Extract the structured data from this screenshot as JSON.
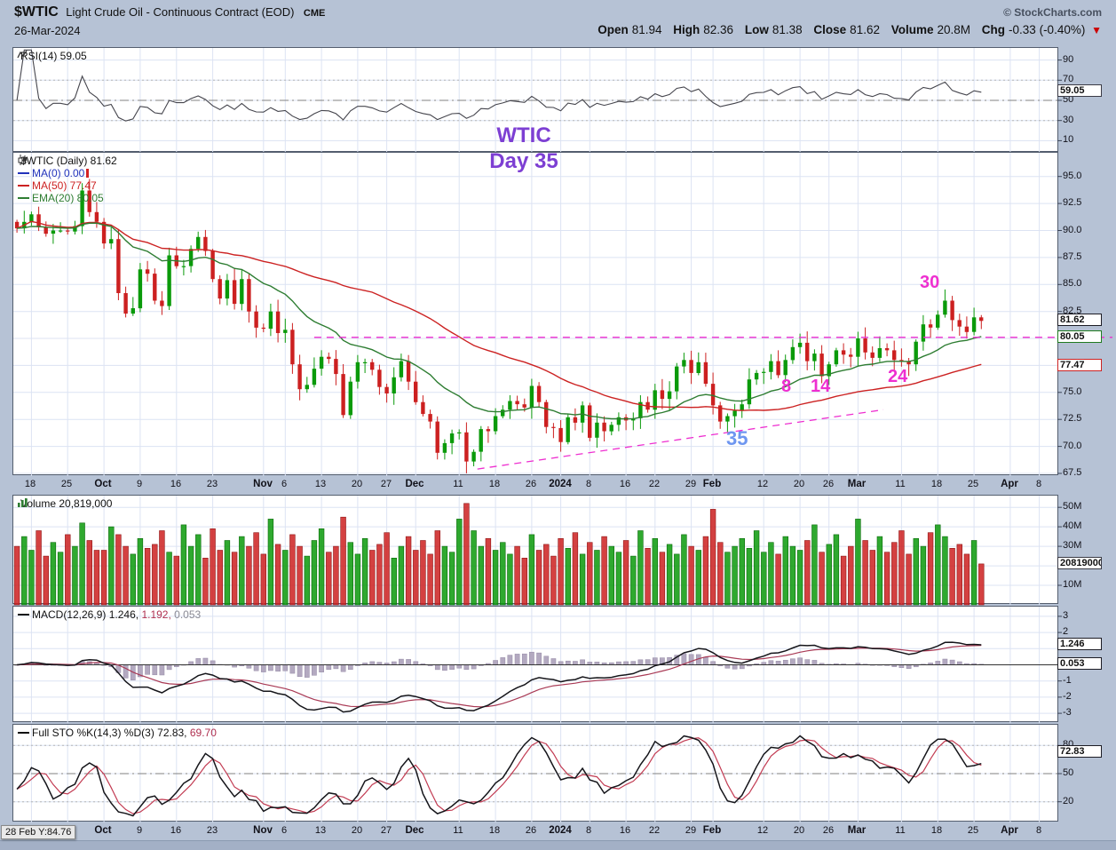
{
  "header": {
    "symbol": "$WTIC",
    "description": "Light Crude Oil - Continuous Contract (EOD)",
    "exchange": "CME",
    "copyright": "© StockCharts.com",
    "date": "26-Mar-2024",
    "dropdown": "▼",
    "quote": [
      {
        "label": "Open",
        "value": "81.94"
      },
      {
        "label": "High",
        "value": "82.36"
      },
      {
        "label": "Low",
        "value": "81.38"
      },
      {
        "label": "Close",
        "value": "81.62"
      },
      {
        "label": "Volume",
        "value": "20.8M"
      },
      {
        "label": "Chg",
        "value": "-0.33 (-0.40%)"
      }
    ]
  },
  "panels": {
    "rsi": {
      "title": "RSI(14) 59.05"
    },
    "price": {
      "title": "$WTIC (Daily) 81.62",
      "ma0": "MA(0) 0.00",
      "ma50": "MA(50) 77.47",
      "ema20": "EMA(20) 80.05"
    },
    "volume": {
      "title": "Volume 20,819,000"
    },
    "macd": {
      "label": "MACD(12,26,9)",
      "v1": "1.246,",
      "v2": "1.192,",
      "v3": "0.053"
    },
    "sto": {
      "label": "Full STO %K(14,3) %D(3)",
      "v1": "72.83,",
      "v2": "69.70"
    }
  },
  "footer": {
    "readout": "28 Feb Y:84.76"
  },
  "chart_data": {
    "type": "candlestick",
    "title": "$WTIC (Daily)",
    "slots": 144,
    "colors": {
      "up": "#0a9a0a",
      "down": "#cc2020",
      "ma50": "#cc2222",
      "ema20": "#2e7d32",
      "magenta": "#ee2fd0",
      "purple": "#7d3fd3",
      "blue": "#6e96f0"
    },
    "x_ticks": [
      {
        "label": "18",
        "slot": 2
      },
      {
        "label": "25",
        "slot": 7
      },
      {
        "label": "Oct",
        "slot": 12,
        "bold": true
      },
      {
        "label": "9",
        "slot": 17
      },
      {
        "label": "16",
        "slot": 22
      },
      {
        "label": "23",
        "slot": 27
      },
      {
        "label": "Nov",
        "slot": 34,
        "bold": true
      },
      {
        "label": "6",
        "slot": 37
      },
      {
        "label": "13",
        "slot": 42
      },
      {
        "label": "20",
        "slot": 47
      },
      {
        "label": "27",
        "slot": 51
      },
      {
        "label": "Dec",
        "slot": 55,
        "bold": true
      },
      {
        "label": "11",
        "slot": 61
      },
      {
        "label": "18",
        "slot": 66
      },
      {
        "label": "26",
        "slot": 71
      },
      {
        "label": "2024",
        "slot": 75,
        "bold": true
      },
      {
        "label": "8",
        "slot": 79
      },
      {
        "label": "16",
        "slot": 84
      },
      {
        "label": "22",
        "slot": 88
      },
      {
        "label": "29",
        "slot": 93
      },
      {
        "label": "Feb",
        "slot": 96,
        "bold": true
      },
      {
        "label": "12",
        "slot": 103
      },
      {
        "label": "20",
        "slot": 108
      },
      {
        "label": "26",
        "slot": 112
      },
      {
        "label": "Mar",
        "slot": 116,
        "bold": true
      },
      {
        "label": "11",
        "slot": 122
      },
      {
        "label": "18",
        "slot": 127
      },
      {
        "label": "25",
        "slot": 132
      },
      {
        "label": "Apr",
        "slot": 137,
        "bold": true
      },
      {
        "label": "8",
        "slot": 141
      }
    ],
    "price": {
      "ylim": [
        67.25,
        97.2
      ],
      "yticks": [
        {
          "v": 95.0,
          "label": "95.0"
        },
        {
          "v": 92.5,
          "label": "92.5"
        },
        {
          "v": 90.0,
          "label": "90.0"
        },
        {
          "v": 87.5,
          "label": "87.5"
        },
        {
          "v": 85.0,
          "label": "85.0"
        },
        {
          "v": 82.5,
          "label": "82.5"
        },
        {
          "v": 80.0,
          "label": "80.0"
        },
        {
          "v": 77.5,
          "label": "77.5"
        },
        {
          "v": 75.0,
          "label": "75.0"
        },
        {
          "v": 72.5,
          "label": "72.5"
        },
        {
          "v": 70.0,
          "label": "70.0"
        },
        {
          "v": 67.5,
          "label": "67.5"
        }
      ],
      "closes": [
        90.2,
        90.8,
        91.5,
        90.3,
        89.7,
        90.0,
        90.0,
        89.9,
        90.4,
        93.7,
        91.7,
        90.8,
        88.8,
        89.2,
        84.2,
        82.3,
        82.8,
        86.4,
        86.0,
        83.5,
        83.0,
        87.7,
        86.7,
        86.7,
        88.3,
        89.4,
        88.1,
        85.5,
        83.7,
        85.4,
        83.2,
        85.5,
        82.5,
        81.0,
        80.9,
        82.5,
        80.5,
        80.8,
        77.6,
        75.3,
        75.7,
        77.2,
        78.3,
        78.1,
        76.7,
        72.9,
        76.0,
        77.8,
        77.8,
        77.1,
        75.5,
        74.9,
        76.4,
        77.9,
        76.0,
        74.1,
        73.0,
        72.3,
        69.4,
        70.3,
        71.2,
        71.3,
        68.6,
        69.5,
        71.6,
        71.4,
        72.8,
        73.4,
        74.2,
        73.9,
        73.6,
        75.6,
        74.1,
        71.8,
        71.7,
        70.4,
        72.7,
        72.2,
        73.8,
        70.8,
        72.2,
        71.4,
        72.0,
        72.7,
        72.4,
        72.6,
        74.1,
        73.4,
        75.2,
        74.4,
        75.1,
        77.4,
        78.0,
        76.8,
        77.8,
        75.8,
        73.8,
        72.3,
        72.8,
        73.3,
        73.9,
        76.2,
        76.8,
        76.9,
        77.9,
        76.6,
        78.0,
        79.2,
        79.6,
        77.9,
        78.6,
        76.5,
        77.6,
        78.9,
        78.5,
        78.3,
        80.0,
        78.7,
        78.2,
        79.1,
        78.9,
        78.0,
        77.9,
        77.6,
        79.7,
        81.3,
        81.0,
        82.2,
        83.5,
        81.7,
        81.1,
        80.6,
        81.95,
        81.62
      ]
    },
    "overlays": {
      "ma": 50,
      "ema": 20
    },
    "volume": {
      "ylim": [
        0,
        56
      ],
      "yticks": [
        {
          "v": 50,
          "label": "50M"
        },
        {
          "v": 40,
          "label": "40M"
        },
        {
          "v": 30,
          "label": "30M"
        },
        {
          "v": 20,
          "label": "20M"
        },
        {
          "v": 10,
          "label": "10M"
        }
      ],
      "values_m": [
        30,
        35,
        28,
        38,
        25,
        32,
        27,
        36,
        30,
        42,
        33,
        28,
        28,
        40,
        36,
        30,
        26,
        34,
        29,
        31,
        38,
        27,
        25,
        41,
        30,
        36,
        24,
        39,
        28,
        33,
        27,
        35,
        30,
        37,
        26,
        44,
        31,
        28,
        36,
        30,
        25,
        33,
        39,
        27,
        30,
        45,
        32,
        26,
        34,
        28,
        31,
        37,
        24,
        30,
        35,
        28,
        33,
        26,
        38,
        30,
        27,
        44,
        52,
        38,
        30,
        34,
        28,
        32,
        26,
        30,
        24,
        36,
        28,
        31,
        25,
        34,
        29,
        37,
        26,
        32,
        28,
        35,
        30,
        27,
        33,
        25,
        38,
        29,
        34,
        27,
        31,
        26,
        36,
        30,
        28,
        35,
        49,
        32,
        27,
        30,
        34,
        29,
        38,
        27,
        32,
        26,
        35,
        30,
        28,
        33,
        41,
        27,
        31,
        36,
        25,
        30,
        44,
        33,
        28,
        35,
        27,
        32,
        38,
        26,
        34,
        30,
        37,
        41,
        35,
        29,
        31,
        26,
        33,
        21
      ]
    },
    "rsi": {
      "period": 14,
      "ylim": [
        -2,
        102
      ],
      "yticks": [
        {
          "v": 90,
          "label": "90"
        },
        {
          "v": 70,
          "label": "70"
        },
        {
          "v": 50,
          "label": "50"
        },
        {
          "v": 30,
          "label": "30"
        },
        {
          "v": 10,
          "label": "10"
        }
      ],
      "bands": {
        "upper": 70,
        "lower": 30,
        "mid": 50
      }
    },
    "macd": {
      "fast": 12,
      "slow": 26,
      "signal": 9,
      "ylim": [
        -3.6,
        3.6
      ],
      "yticks": [
        {
          "v": 3,
          "label": "3"
        },
        {
          "v": 2,
          "label": "2"
        },
        {
          "v": 1,
          "label": "1"
        },
        {
          "v": -1,
          "label": "-1"
        },
        {
          "v": -2,
          "label": "-2"
        },
        {
          "v": -3,
          "label": "-3"
        }
      ]
    },
    "stoch": {
      "k": 14,
      "smooth": 3,
      "d": 3,
      "ylim": [
        -2,
        102
      ],
      "yticks": [
        {
          "v": 80,
          "label": "80"
        },
        {
          "v": 50,
          "label": "50"
        },
        {
          "v": 20,
          "label": "20"
        }
      ],
      "bands": {
        "upper": 80,
        "lower": 20,
        "mid": 50
      }
    },
    "axis_boxes": [
      {
        "panel": "rsi",
        "value": 59.05,
        "label": "59.05",
        "color": "#3a3a44"
      },
      {
        "panel": "price",
        "value": 81.62,
        "label": "81.62",
        "color": "#1c1c24"
      },
      {
        "panel": "price",
        "value": 80.05,
        "label": "80.05",
        "color": "#1f7a1f"
      },
      {
        "panel": "price",
        "value": 77.47,
        "label": "77.47",
        "color": "#cc2222"
      },
      {
        "panel": "vol",
        "value": 20.8,
        "label": "20819000",
        "color": "#3a3a44"
      },
      {
        "panel": "macd",
        "value": 1.246,
        "label": "1.246",
        "color": "#1c1c24"
      },
      {
        "panel": "macd",
        "value": 0.053,
        "label": "0.053",
        "color": "#1c1c24"
      },
      {
        "panel": "sto",
        "value": 72.83,
        "label": "72.83",
        "color": "#1c1c24"
      }
    ],
    "annotations": {
      "texts": {
        "wtic": "WTIC",
        "day35": "Day 35",
        "n30": "30",
        "n8": "8",
        "n14": "14",
        "n24": "24",
        "n35": "35"
      },
      "hline": {
        "price": 80.1,
        "from_slot": 41
      },
      "trendline": {
        "from": [
          63.5,
          67.9
        ],
        "to": [
          119.5,
          73.4
        ]
      }
    }
  }
}
